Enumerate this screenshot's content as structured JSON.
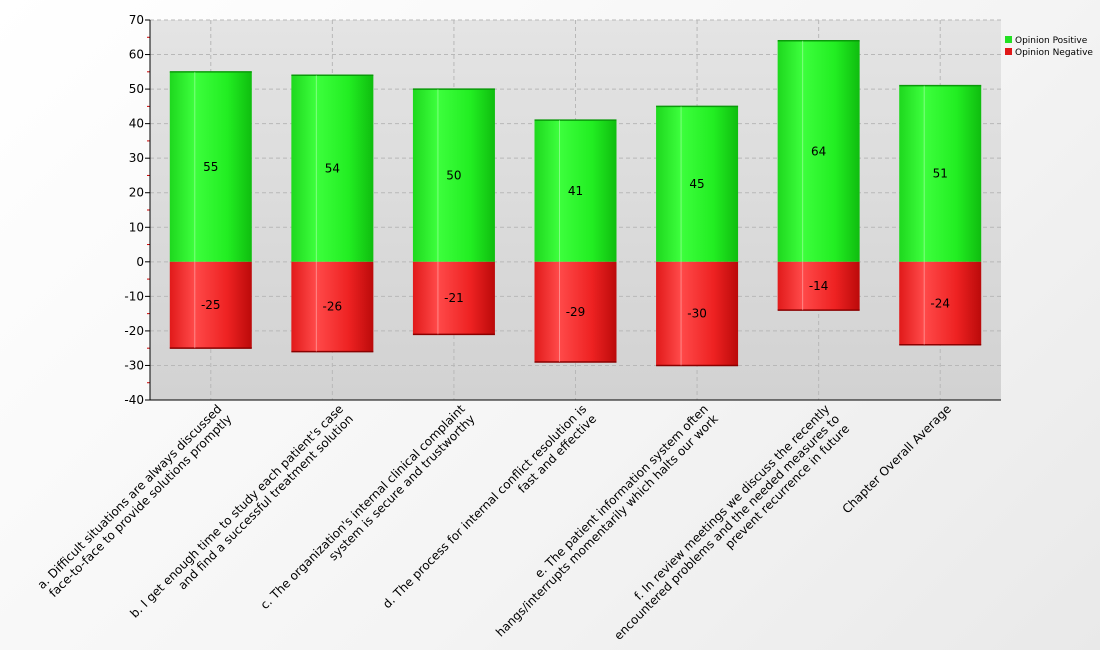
{
  "chart_data": {
    "type": "bar",
    "categories": [
      [
        "a. Difficult situations are always discussed",
        "face-to-face to provide solutions promptly"
      ],
      [
        "b. I get enough time to study each patient's case",
        "and find a successful treatment solution"
      ],
      [
        "c. The organization's internal clinical complaint",
        "system is secure and trustworthy"
      ],
      [
        "d. The process for internal conflict resolution is",
        "fast and effective"
      ],
      [
        "e. The patient information system often",
        "hangs/interrupts momentarily which halts our work"
      ],
      [
        "f. In review meetings we discuss the recently",
        "encountered problems and the needed measures to",
        "prevent recurrence in future"
      ],
      [
        "Chapter Overall Average"
      ]
    ],
    "series": [
      {
        "name": "Opinion Positive",
        "color": "#22e022",
        "values": [
          55,
          54,
          50,
          41,
          45,
          64,
          51
        ]
      },
      {
        "name": "Opinion Negative",
        "color": "#e01818",
        "values": [
          -25,
          -26,
          -21,
          -29,
          -30,
          -14,
          -24
        ]
      }
    ],
    "ylim": [
      -40,
      70
    ],
    "yticks": [
      -40,
      -30,
      -20,
      -10,
      0,
      10,
      20,
      30,
      40,
      50,
      60,
      70
    ],
    "grid": true,
    "legend": "top-right",
    "stacked": true
  }
}
